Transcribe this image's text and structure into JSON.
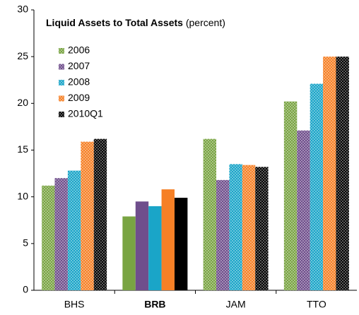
{
  "chart_data": {
    "type": "bar",
    "title": "Liquid Assets to Total Assets",
    "subtitle": "(percent)",
    "categories": [
      "BHS",
      "BRB",
      "JAM",
      "TTO"
    ],
    "series": [
      {
        "name": "2006",
        "color": "#79a442",
        "values": [
          11.2,
          7.9,
          16.2,
          20.2
        ]
      },
      {
        "name": "2007",
        "color": "#6f4e8c",
        "values": [
          12.0,
          9.5,
          11.8,
          17.1
        ]
      },
      {
        "name": "2008",
        "color": "#1aa5c8",
        "values": [
          12.8,
          9.0,
          13.5,
          22.1
        ]
      },
      {
        "name": "2009",
        "color": "#f68026",
        "values": [
          15.9,
          10.8,
          13.4,
          25.0
        ]
      },
      {
        "name": "2010Q1",
        "color": "#000000",
        "values": [
          16.2,
          9.9,
          13.2,
          25.0
        ]
      }
    ],
    "highlight": 1,
    "ylim": [
      0,
      30
    ],
    "yticks": [
      0,
      5,
      10,
      15,
      20,
      25,
      30
    ],
    "grid": false
  }
}
